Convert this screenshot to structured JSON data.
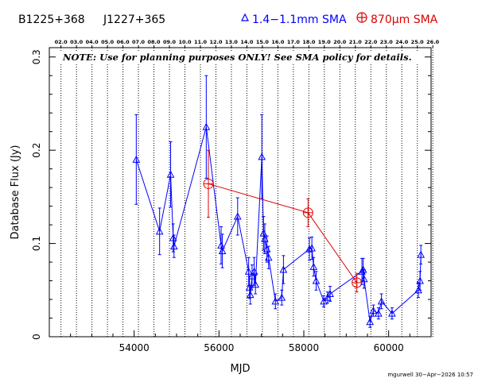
{
  "header": {
    "source_1": "B1225+368",
    "source_2": "J1227+365",
    "legend_blue": "1.4−1.1mm SMA",
    "legend_red": "870μm SMA"
  },
  "note": "NOTE: Use for planning purposes ONLY! See SMA policy for details.",
  "footer": "mgurwell 30−Apr−2026 10:57",
  "colors": {
    "blue": "#0000ff",
    "red": "#dd0000",
    "axis": "#000000"
  },
  "chart_data": {
    "type": "scatter",
    "xlabel": "MJD",
    "ylabel": "Database Flux (Jy)",
    "xlim": [
      52000,
      61000
    ],
    "ylim": [
      0,
      0.31
    ],
    "x_ticks": [
      54000,
      56000,
      58000,
      60000
    ],
    "y_ticks": [
      0,
      0.1,
      0.2,
      0.3
    ],
    "y_tick_labels": [
      "0",
      "0.1",
      "0.2",
      "0.3"
    ],
    "top_axis_years": [
      "02.0",
      "03.0",
      "04.0",
      "05.0",
      "06.0",
      "07.0",
      "08.0",
      "09.0",
      "10.0",
      "11.0",
      "12.0",
      "13.0",
      "14.0",
      "15.0",
      "16.0",
      "17.0",
      "18.0",
      "19.0",
      "20.0",
      "21.0",
      "22.0",
      "23.0",
      "24.0",
      "25.0",
      "26.0"
    ],
    "series": [
      {
        "name": "1.4−1.1mm SMA",
        "color": "#0000ff",
        "marker": "triangle",
        "points": [
          {
            "x": 54050,
            "y": 0.19,
            "err": 0.048
          },
          {
            "x": 54600,
            "y": 0.113,
            "err": 0.025
          },
          {
            "x": 54860,
            "y": 0.174,
            "err": 0.035
          },
          {
            "x": 54920,
            "y": 0.106,
            "err": 0.015
          },
          {
            "x": 54940,
            "y": 0.097,
            "err": 0.012
          },
          {
            "x": 55700,
            "y": 0.225,
            "err": 0.055
          },
          {
            "x": 56050,
            "y": 0.098,
            "err": 0.02
          },
          {
            "x": 56080,
            "y": 0.092,
            "err": 0.018
          },
          {
            "x": 56440,
            "y": 0.129,
            "err": 0.02
          },
          {
            "x": 56700,
            "y": 0.07,
            "err": 0.015
          },
          {
            "x": 56720,
            "y": 0.053,
            "err": 0.012
          },
          {
            "x": 56740,
            "y": 0.045,
            "err": 0.01
          },
          {
            "x": 56780,
            "y": 0.065,
            "err": 0.012
          },
          {
            "x": 56830,
            "y": 0.07,
            "err": 0.015
          },
          {
            "x": 56860,
            "y": 0.056,
            "err": 0.01
          },
          {
            "x": 57010,
            "y": 0.193,
            "err": 0.045
          },
          {
            "x": 57050,
            "y": 0.111,
            "err": 0.018
          },
          {
            "x": 57080,
            "y": 0.105,
            "err": 0.016
          },
          {
            "x": 57130,
            "y": 0.094,
            "err": 0.014
          },
          {
            "x": 57170,
            "y": 0.085,
            "err": 0.012
          },
          {
            "x": 57330,
            "y": 0.038,
            "err": 0.008
          },
          {
            "x": 57480,
            "y": 0.042,
            "err": 0.008
          },
          {
            "x": 57520,
            "y": 0.072,
            "err": 0.015
          },
          {
            "x": 58130,
            "y": 0.094,
            "err": 0.012
          },
          {
            "x": 58190,
            "y": 0.095,
            "err": 0.012
          },
          {
            "x": 58230,
            "y": 0.075,
            "err": 0.01
          },
          {
            "x": 58290,
            "y": 0.06,
            "err": 0.01
          },
          {
            "x": 58470,
            "y": 0.038,
            "err": 0.006
          },
          {
            "x": 58560,
            "y": 0.042,
            "err": 0.006
          },
          {
            "x": 58620,
            "y": 0.046,
            "err": 0.008
          },
          {
            "x": 59370,
            "y": 0.07,
            "err": 0.014
          },
          {
            "x": 59400,
            "y": 0.072,
            "err": 0.012
          },
          {
            "x": 59420,
            "y": 0.062,
            "err": 0.01
          },
          {
            "x": 59560,
            "y": 0.016,
            "err": 0.006
          },
          {
            "x": 59640,
            "y": 0.028,
            "err": 0.006
          },
          {
            "x": 59760,
            "y": 0.025,
            "err": 0.006
          },
          {
            "x": 59830,
            "y": 0.038,
            "err": 0.008
          },
          {
            "x": 60080,
            "y": 0.025,
            "err": 0.006
          },
          {
            "x": 60700,
            "y": 0.05,
            "err": 0.008
          },
          {
            "x": 60740,
            "y": 0.06,
            "err": 0.01
          },
          {
            "x": 60760,
            "y": 0.088,
            "err": 0.01
          }
        ]
      },
      {
        "name": "870μm SMA",
        "color": "#dd0000",
        "marker": "circle-plus",
        "points": [
          {
            "x": 55750,
            "y": 0.164,
            "err": 0.036
          },
          {
            "x": 58100,
            "y": 0.133,
            "err": 0.015
          },
          {
            "x": 59250,
            "y": 0.058,
            "err": 0.01
          }
        ]
      }
    ]
  }
}
